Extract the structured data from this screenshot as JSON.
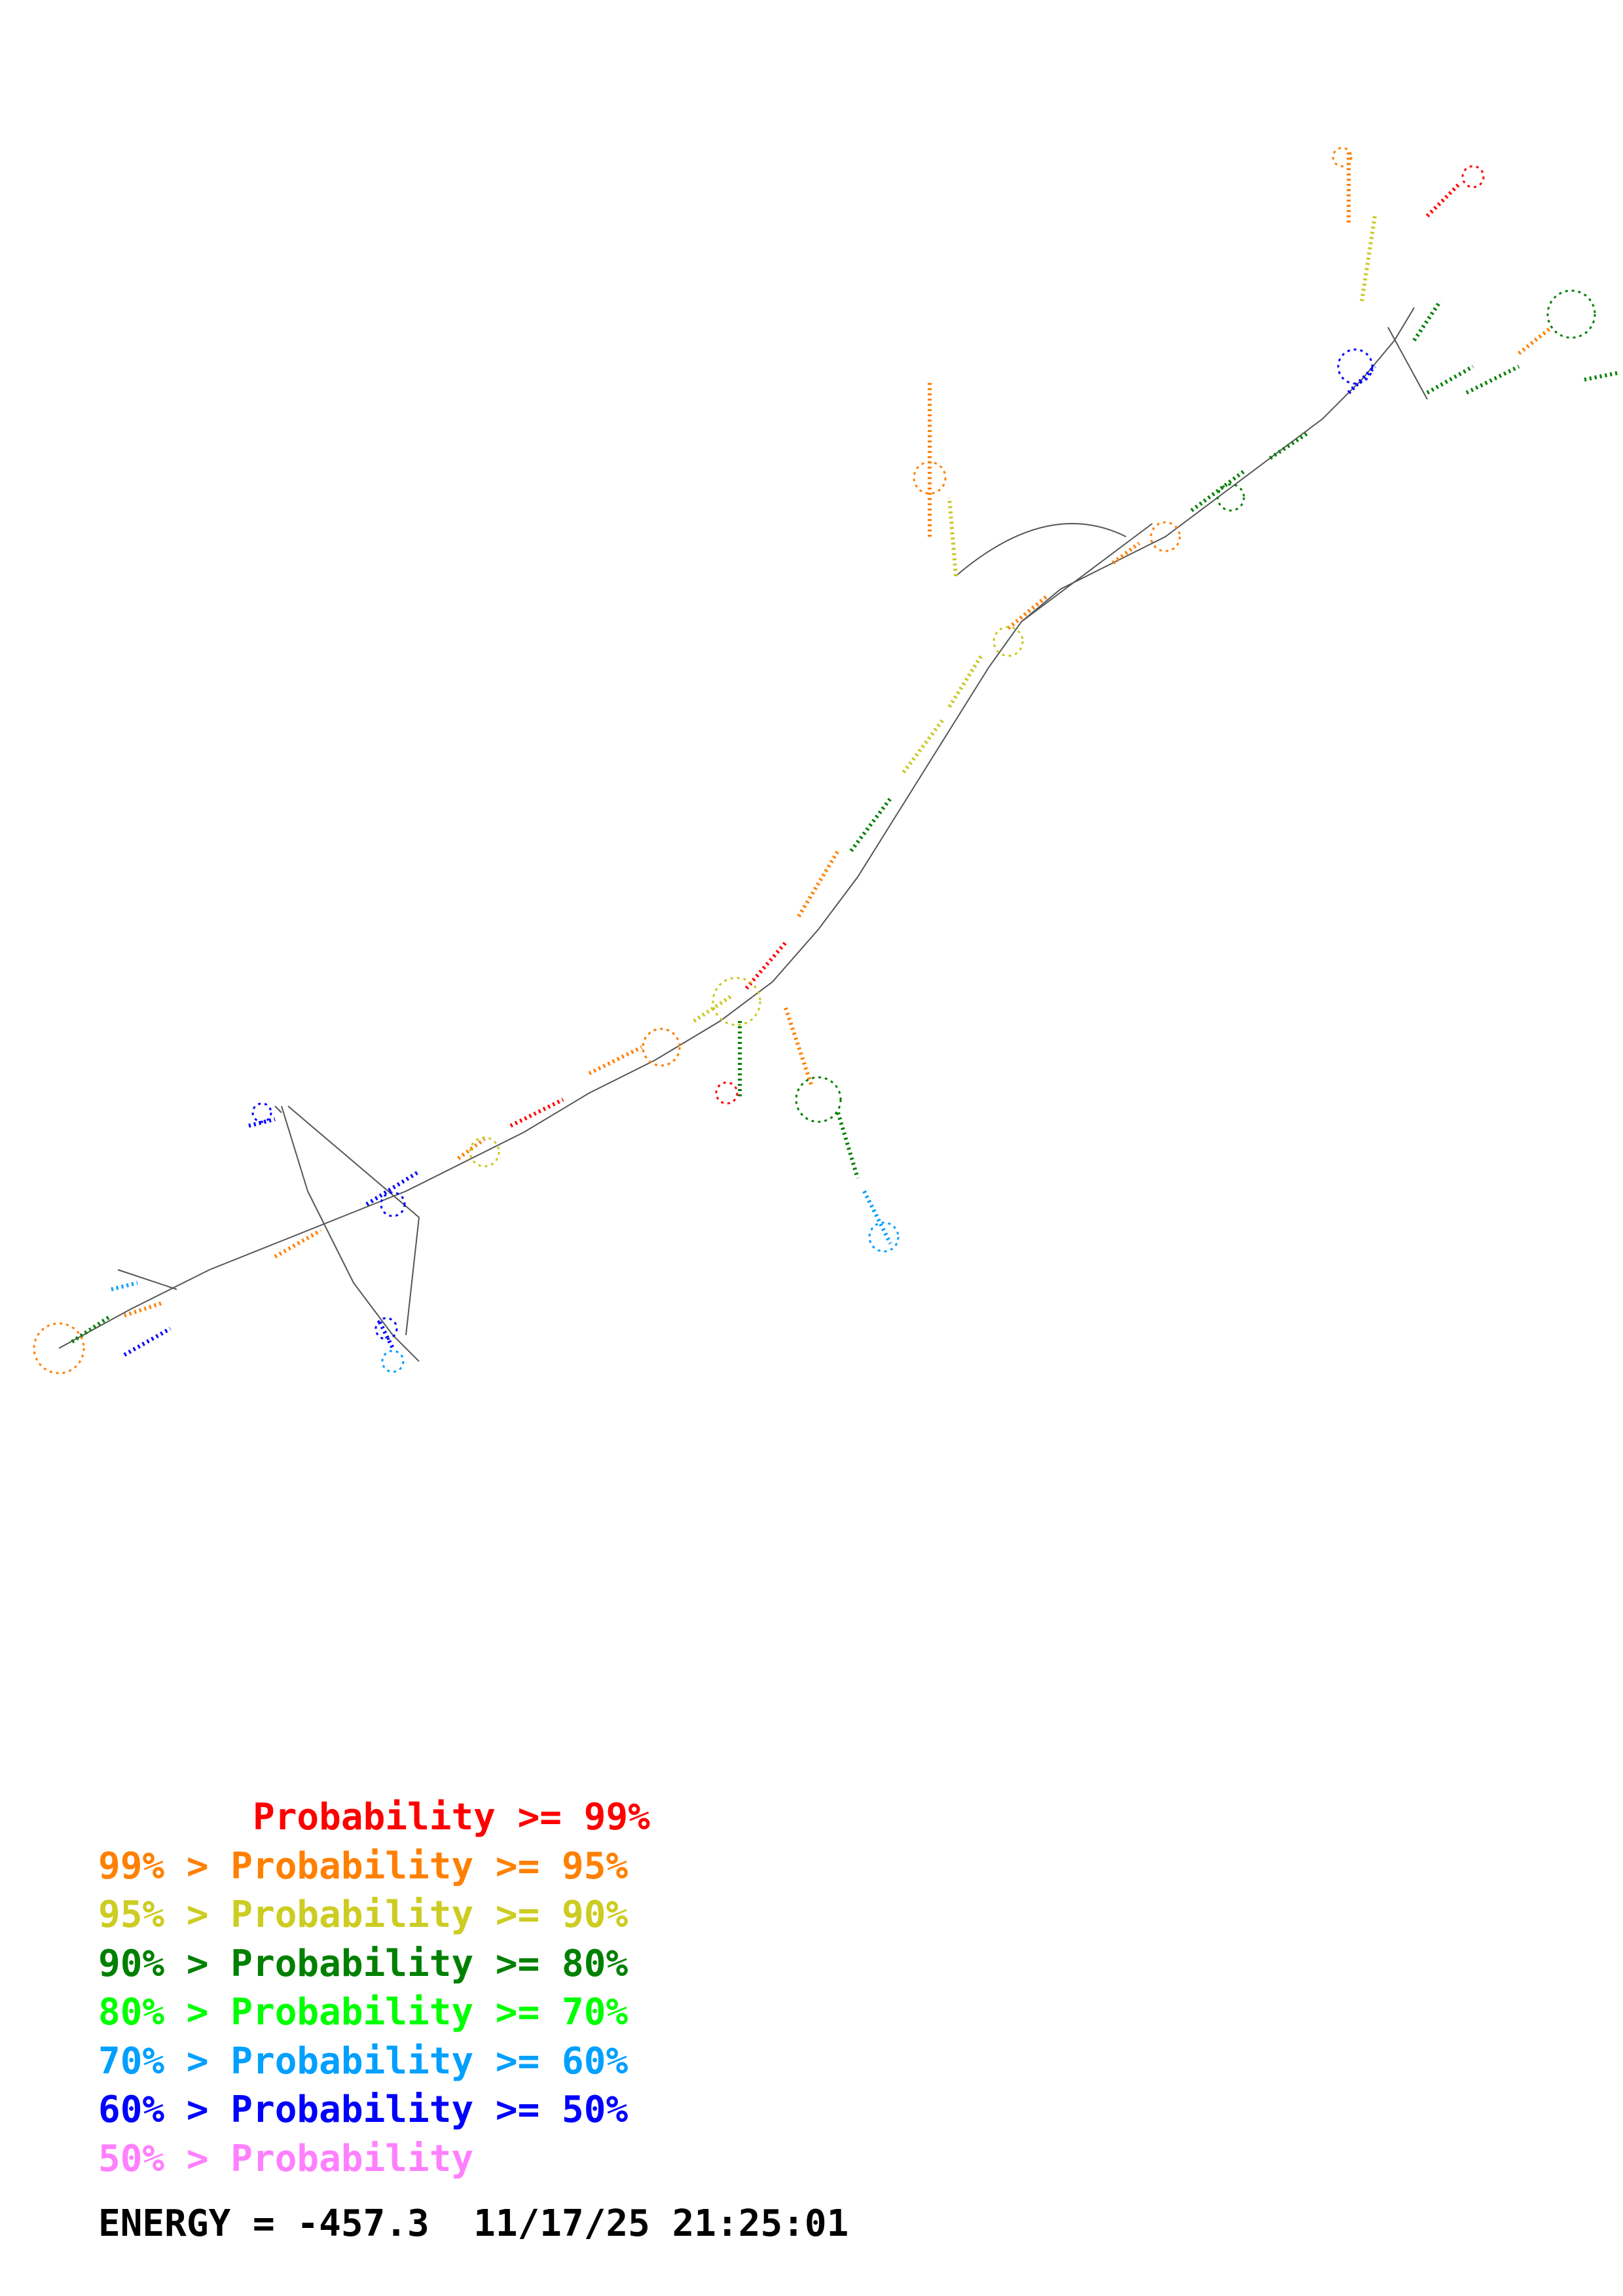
{
  "diagram": {
    "type": "rna-secondary-structure",
    "colors": {
      "backbone": "#555555",
      "p99": "#ff0000",
      "p95": "#ff8000",
      "p90": "#c8c820",
      "p80": "#008000",
      "p70": "#00ff00",
      "p60": "#00a0ff",
      "p50": "#0000ff",
      "p0": "#ff80ff"
    }
  },
  "legend": [
    {
      "text": "       Probability >= 99%",
      "color": "#ff0000"
    },
    {
      "text": "99% > Probability >= 95%",
      "color": "#ff8000"
    },
    {
      "text": "95% > Probability >= 90%",
      "color": "#cccc22"
    },
    {
      "text": "90% > Probability >= 80%",
      "color": "#008000"
    },
    {
      "text": "80% > Probability >= 70%",
      "color": "#00ff00"
    },
    {
      "text": "70% > Probability >= 60%",
      "color": "#00a0ff"
    },
    {
      "text": "60% > Probability >= 50%",
      "color": "#0000ff"
    },
    {
      "text": "50% > Probability",
      "color": "#ff80ff"
    }
  ],
  "footer": {
    "energy_text": "ENERGY = -457.3  11/17/25 21:25:01"
  }
}
